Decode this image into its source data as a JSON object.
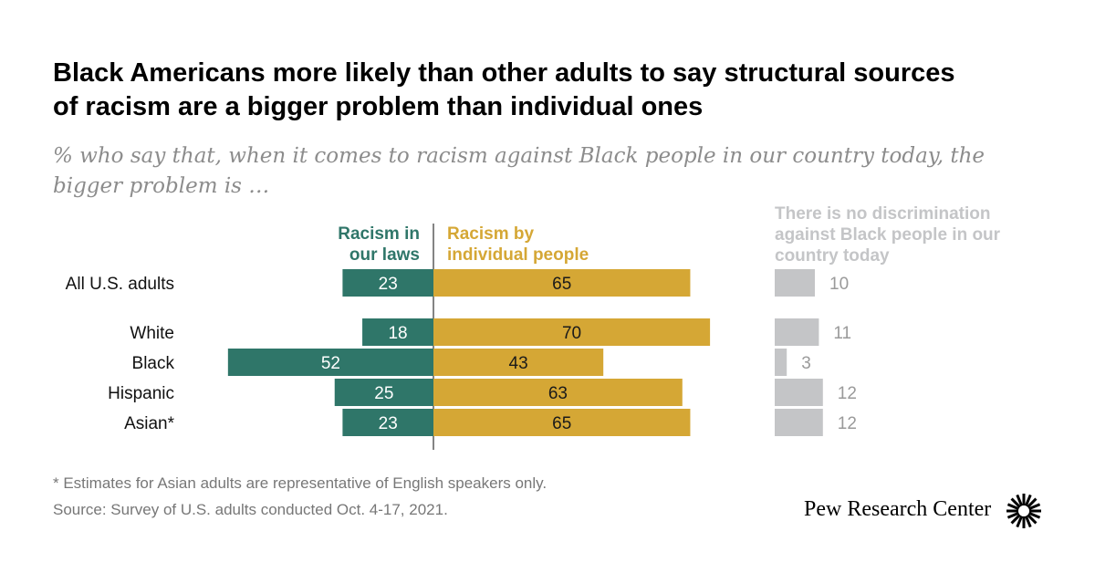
{
  "header": {
    "title": "Black Americans more likely than other adults to say structural sources of racism are a bigger problem than individual ones",
    "subtitle": "% who say that, when it comes to racism against Black people in our country today, the bigger problem is …"
  },
  "chart_data": {
    "type": "bar",
    "orientation": "horizontal-diverging",
    "categories": [
      "All U.S. adults",
      "White",
      "Black",
      "Hispanic",
      "Asian*"
    ],
    "series": [
      {
        "name": "Racism in our laws",
        "label_lines": [
          "Racism in",
          "our laws"
        ],
        "color": "#2f7669",
        "values": [
          23,
          18,
          52,
          25,
          23
        ]
      },
      {
        "name": "Racism by individual people",
        "label_lines": [
          "Racism by",
          "individual people"
        ],
        "color": "#d5a735",
        "values": [
          65,
          70,
          43,
          63,
          65
        ]
      },
      {
        "name": "There is no discrimination against Black people in our country today",
        "label_lines": [
          "There is no discrimination",
          "against Black people in our",
          "country today"
        ],
        "color": "#c4c5c7",
        "values": [
          10,
          11,
          3,
          12,
          12
        ]
      }
    ],
    "grid": false,
    "legend": "column headers above bars"
  },
  "footer": {
    "note": "* Estimates for Asian adults are representative of English speakers only.",
    "source": "Source: Survey of U.S. adults conducted Oct. 4-17, 2021.",
    "brand": "Pew Research Center"
  },
  "colors": {
    "laws": "#2f7669",
    "individual": "#d5a735",
    "none": "#c4c5c7",
    "none_text": "#9a9a9a"
  }
}
